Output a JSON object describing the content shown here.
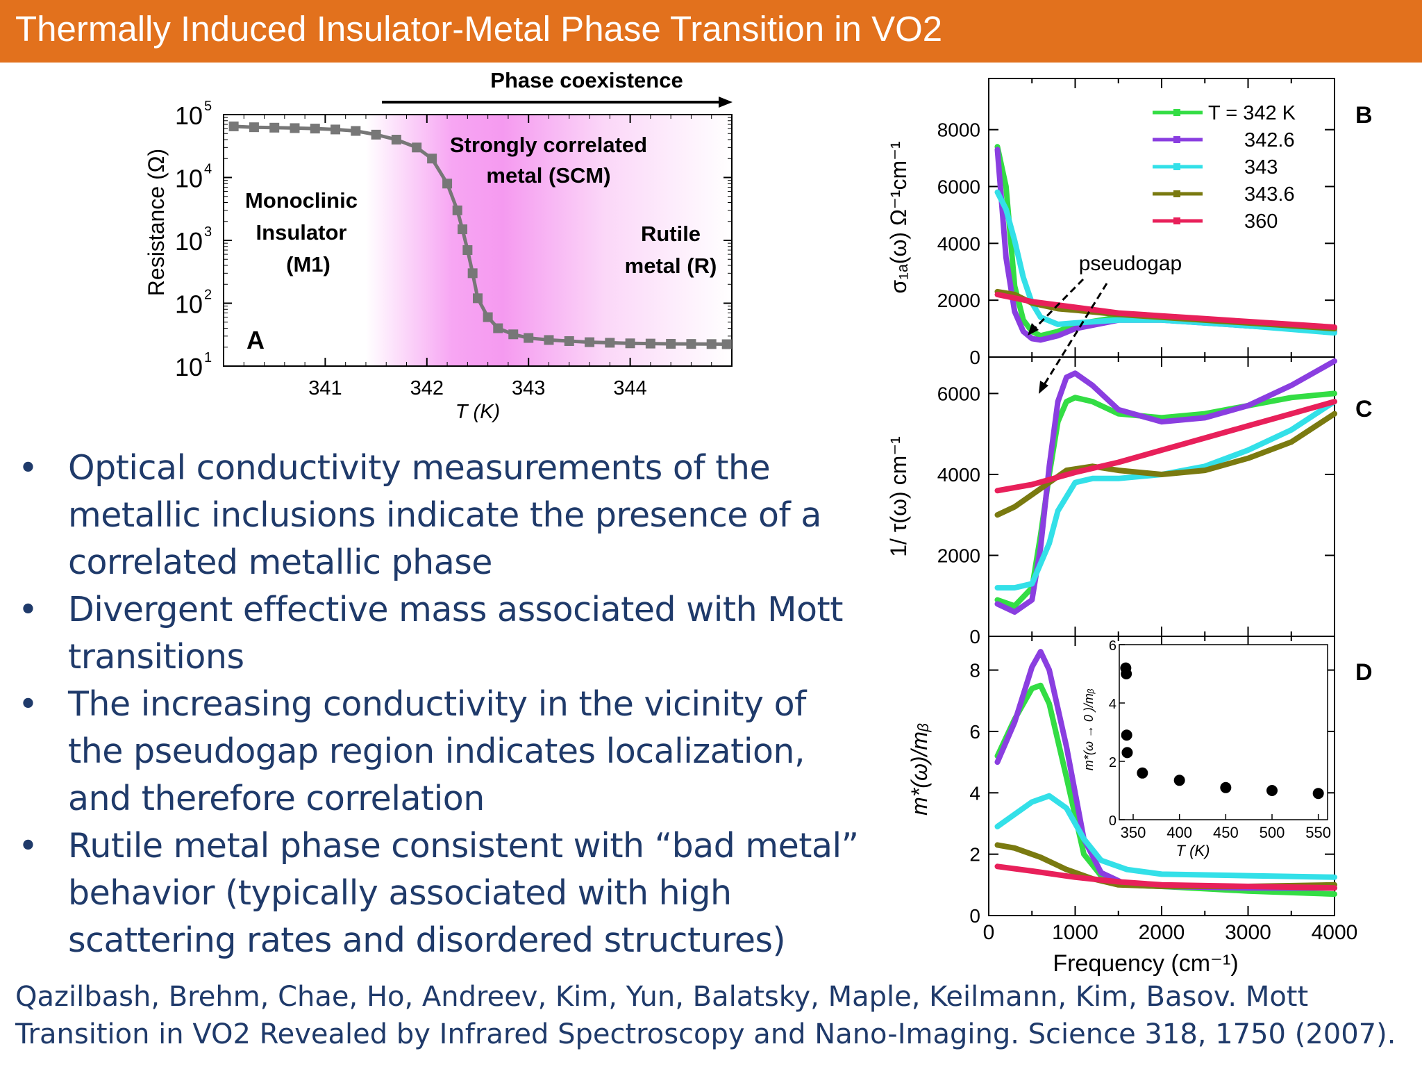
{
  "title": "Thermally Induced Insulator-Metal Phase Transition in VO2",
  "bullets": [
    "Optical conductivity measurements of the metallic inclusions indicate the presence of a correlated metallic phase",
    "Divergent effective mass associated with Mott transitions",
    "The increasing conductivity in the vicinity of the pseudogap region indicates localization, and therefore correlation",
    "Rutile metal phase consistent with “bad metal” behavior (typically associated with high scattering rates and disordered structures)"
  ],
  "bullet_glyph": "•",
  "citation": "Qazilbash, Brehm, Chae, Ho, Andreev, Kim, Yun, Balatsky, Maple, Keilmann, Kim, Basov. Mott Transition in VO2 Revealed by Infrared Spectroscopy and Nano-Imaging. Science 318, 1750 (2007).",
  "colors": {
    "title_bar": "#e2711d",
    "text": "#1f3a6a"
  },
  "chart_data": [
    {
      "type": "line",
      "panel_label": "A",
      "header": "Phase coexistence",
      "xlabel": "T (K)",
      "ylabel": "Resistance (Ω)",
      "log_y": true,
      "x_ticks": [
        "341",
        "342",
        "343",
        "344"
      ],
      "y_ticks": [
        "10",
        "10",
        "10",
        "10",
        "10"
      ],
      "y_tick_exponents": [
        "1",
        "2",
        "3",
        "4",
        "5"
      ],
      "region_labels": {
        "m1": [
          "Monoclinic",
          "Insulator",
          "(M1)"
        ],
        "scm": [
          "Strongly correlated",
          "metal (SCM)"
        ],
        "rutile": [
          "Rutile",
          "metal (R)"
        ]
      },
      "xlim": [
        340.0,
        345.0
      ],
      "ylim": [
        10,
        100000
      ],
      "series": [
        {
          "x": [
            340.1,
            340.3,
            340.5,
            340.7,
            340.9,
            341.1,
            341.3,
            341.5,
            341.7,
            341.9,
            342.05,
            342.2,
            342.3,
            342.35,
            342.4,
            342.45,
            342.5,
            342.6,
            342.7,
            342.85,
            343.0,
            343.2,
            343.4,
            343.6,
            343.8,
            344.0,
            344.2,
            344.4,
            344.6,
            344.8,
            344.95
          ],
          "y": [
            65000,
            63000,
            62000,
            61000,
            60000,
            58000,
            55000,
            48000,
            40000,
            30000,
            20000,
            8000,
            3000,
            1500,
            700,
            300,
            120,
            60,
            40,
            32,
            28,
            26,
            25,
            24,
            23.5,
            23,
            22.8,
            22.6,
            22.5,
            22.4,
            22.3
          ]
        }
      ]
    },
    {
      "type": "line",
      "panel_label": "B",
      "ylabel": "σ₁ₐ(ω)  Ω⁻¹cm⁻¹",
      "y_ticks": [
        "0",
        "2000",
        "4000",
        "6000",
        "8000"
      ],
      "xlim": [
        0,
        4000
      ],
      "ylim": [
        0,
        9800
      ],
      "annotation": "pseudogap",
      "legend_title": "T = 342 K",
      "series": [
        {
          "name": "342",
          "color": "#33dd44",
          "x": [
            100,
            200,
            300,
            400,
            500,
            600,
            800,
            1000,
            1500,
            2000,
            3000,
            4000
          ],
          "y": [
            7400,
            6000,
            2500,
            1300,
            900,
            750,
            900,
            1150,
            1400,
            1350,
            1100,
            900
          ]
        },
        {
          "name": "342.6",
          "color": "#8a3ee0",
          "x": [
            100,
            200,
            300,
            400,
            500,
            600,
            800,
            1000,
            1500,
            2000,
            3000,
            4000
          ],
          "y": [
            7300,
            3500,
            1600,
            900,
            650,
            600,
            750,
            1000,
            1300,
            1300,
            1100,
            900
          ]
        },
        {
          "name": "343",
          "color": "#33e0e8",
          "x": [
            100,
            200,
            300,
            400,
            500,
            600,
            800,
            1000,
            1500,
            2000,
            3000,
            4000
          ],
          "y": [
            5800,
            5200,
            4100,
            2800,
            1900,
            1400,
            1150,
            1200,
            1300,
            1300,
            1100,
            850
          ]
        },
        {
          "name": "343.6",
          "color": "#7a7a10",
          "x": [
            100,
            300,
            500,
            800,
            1000,
            1500,
            2000,
            3000,
            4000
          ],
          "y": [
            2300,
            2200,
            1900,
            1700,
            1650,
            1500,
            1400,
            1200,
            1000
          ]
        },
        {
          "name": "360",
          "color": "#e8205a",
          "x": [
            100,
            500,
            1000,
            1500,
            2000,
            2500,
            3000,
            3500,
            4000
          ],
          "y": [
            2200,
            1950,
            1750,
            1550,
            1450,
            1350,
            1250,
            1150,
            1050
          ]
        }
      ]
    },
    {
      "type": "line",
      "panel_label": "C",
      "ylabel": "1/ τ(ω)  cm⁻¹",
      "y_ticks": [
        "0",
        "2000",
        "4000",
        "6000"
      ],
      "xlim": [
        0,
        4000
      ],
      "ylim": [
        0,
        6900
      ],
      "series": [
        {
          "name": "342",
          "color": "#33dd44",
          "x": [
            100,
            300,
            500,
            600,
            700,
            800,
            900,
            1000,
            1200,
            1500,
            2000,
            2500,
            3000,
            3500,
            4000
          ],
          "y": [
            900,
            750,
            1200,
            2500,
            4000,
            5300,
            5800,
            5900,
            5800,
            5500,
            5400,
            5500,
            5700,
            5900,
            6000
          ]
        },
        {
          "name": "342.6",
          "color": "#8a3ee0",
          "x": [
            100,
            300,
            500,
            600,
            700,
            800,
            900,
            1000,
            1200,
            1500,
            2000,
            2500,
            3000,
            3500,
            4000
          ],
          "y": [
            800,
            600,
            900,
            2200,
            4200,
            5800,
            6400,
            6500,
            6200,
            5600,
            5300,
            5400,
            5700,
            6200,
            6800
          ]
        },
        {
          "name": "343",
          "color": "#33e0e8",
          "x": [
            100,
            300,
            500,
            700,
            800,
            1000,
            1200,
            1500,
            2000,
            2500,
            3000,
            3500,
            4000
          ],
          "y": [
            1200,
            1200,
            1300,
            2300,
            3100,
            3800,
            3900,
            3900,
            4000,
            4200,
            4600,
            5100,
            5800
          ]
        },
        {
          "name": "343.6",
          "color": "#7a7a10",
          "x": [
            100,
            300,
            500,
            700,
            900,
            1200,
            1500,
            2000,
            2500,
            3000,
            3500,
            4000
          ],
          "y": [
            3000,
            3200,
            3500,
            3800,
            4100,
            4200,
            4100,
            4000,
            4100,
            4400,
            4800,
            5500
          ]
        },
        {
          "name": "360",
          "color": "#e8205a",
          "x": [
            100,
            500,
            1000,
            1500,
            2000,
            2500,
            3000,
            3500,
            4000
          ],
          "y": [
            3600,
            3750,
            4050,
            4300,
            4600,
            4900,
            5200,
            5500,
            5800
          ]
        }
      ]
    },
    {
      "type": "line",
      "panel_label": "D",
      "ylabel": "m*(ω)/mᵦ",
      "xlabel": "Frequency (cm⁻¹)",
      "x_ticks": [
        "0",
        "1000",
        "2000",
        "3000",
        "4000"
      ],
      "y_ticks": [
        "0",
        "2",
        "4",
        "6",
        "8"
      ],
      "xlim": [
        0,
        4000
      ],
      "ylim": [
        0,
        9.1
      ],
      "series": [
        {
          "name": "342",
          "color": "#33dd44",
          "x": [
            100,
            300,
            500,
            600,
            700,
            900,
            1100,
            1300,
            1600,
            2000,
            3000,
            4000
          ],
          "y": [
            5.2,
            6.4,
            7.4,
            7.5,
            6.9,
            4.5,
            2.0,
            1.3,
            1.0,
            0.95,
            0.8,
            0.7
          ]
        },
        {
          "name": "342.6",
          "color": "#8a3ee0",
          "x": [
            100,
            300,
            500,
            600,
            700,
            900,
            1100,
            1300,
            1600,
            2000,
            3000,
            4000
          ],
          "y": [
            5.0,
            6.3,
            8.1,
            8.6,
            8.0,
            5.5,
            2.5,
            1.4,
            1.0,
            0.95,
            0.9,
            0.9
          ]
        },
        {
          "name": "343",
          "color": "#33e0e8",
          "x": [
            100,
            300,
            500,
            700,
            900,
            1100,
            1300,
            1600,
            2000,
            3000,
            4000
          ],
          "y": [
            2.9,
            3.3,
            3.7,
            3.9,
            3.5,
            2.5,
            1.8,
            1.5,
            1.35,
            1.3,
            1.25
          ]
        },
        {
          "name": "343.6",
          "color": "#7a7a10",
          "x": [
            100,
            300,
            600,
            900,
            1200,
            1500,
            2000,
            3000,
            4000
          ],
          "y": [
            2.3,
            2.2,
            1.9,
            1.5,
            1.2,
            1.0,
            0.95,
            0.95,
            1.0
          ]
        },
        {
          "name": "360",
          "color": "#e8205a",
          "x": [
            100,
            500,
            1000,
            1500,
            2000,
            3000,
            4000
          ],
          "y": [
            1.6,
            1.45,
            1.25,
            1.1,
            1.0,
            0.95,
            0.9
          ]
        }
      ]
    },
    {
      "type": "scatter",
      "panel_label": "D inset",
      "xlabel": "T (K)",
      "ylabel": "m*(ω → 0 )/mᵦ",
      "x_ticks": [
        "350",
        "400",
        "450",
        "500",
        "550"
      ],
      "y_ticks": [
        "0",
        "2",
        "4",
        "6"
      ],
      "xlim": [
        335,
        560
      ],
      "ylim": [
        0,
        6
      ],
      "points": [
        {
          "x": 342,
          "y": 5.2
        },
        {
          "x": 342.6,
          "y": 5.0
        },
        {
          "x": 343,
          "y": 2.9
        },
        {
          "x": 343.6,
          "y": 2.3
        },
        {
          "x": 360,
          "y": 1.6
        },
        {
          "x": 400,
          "y": 1.35
        },
        {
          "x": 450,
          "y": 1.1
        },
        {
          "x": 500,
          "y": 1.0
        },
        {
          "x": 550,
          "y": 0.9
        }
      ]
    }
  ]
}
